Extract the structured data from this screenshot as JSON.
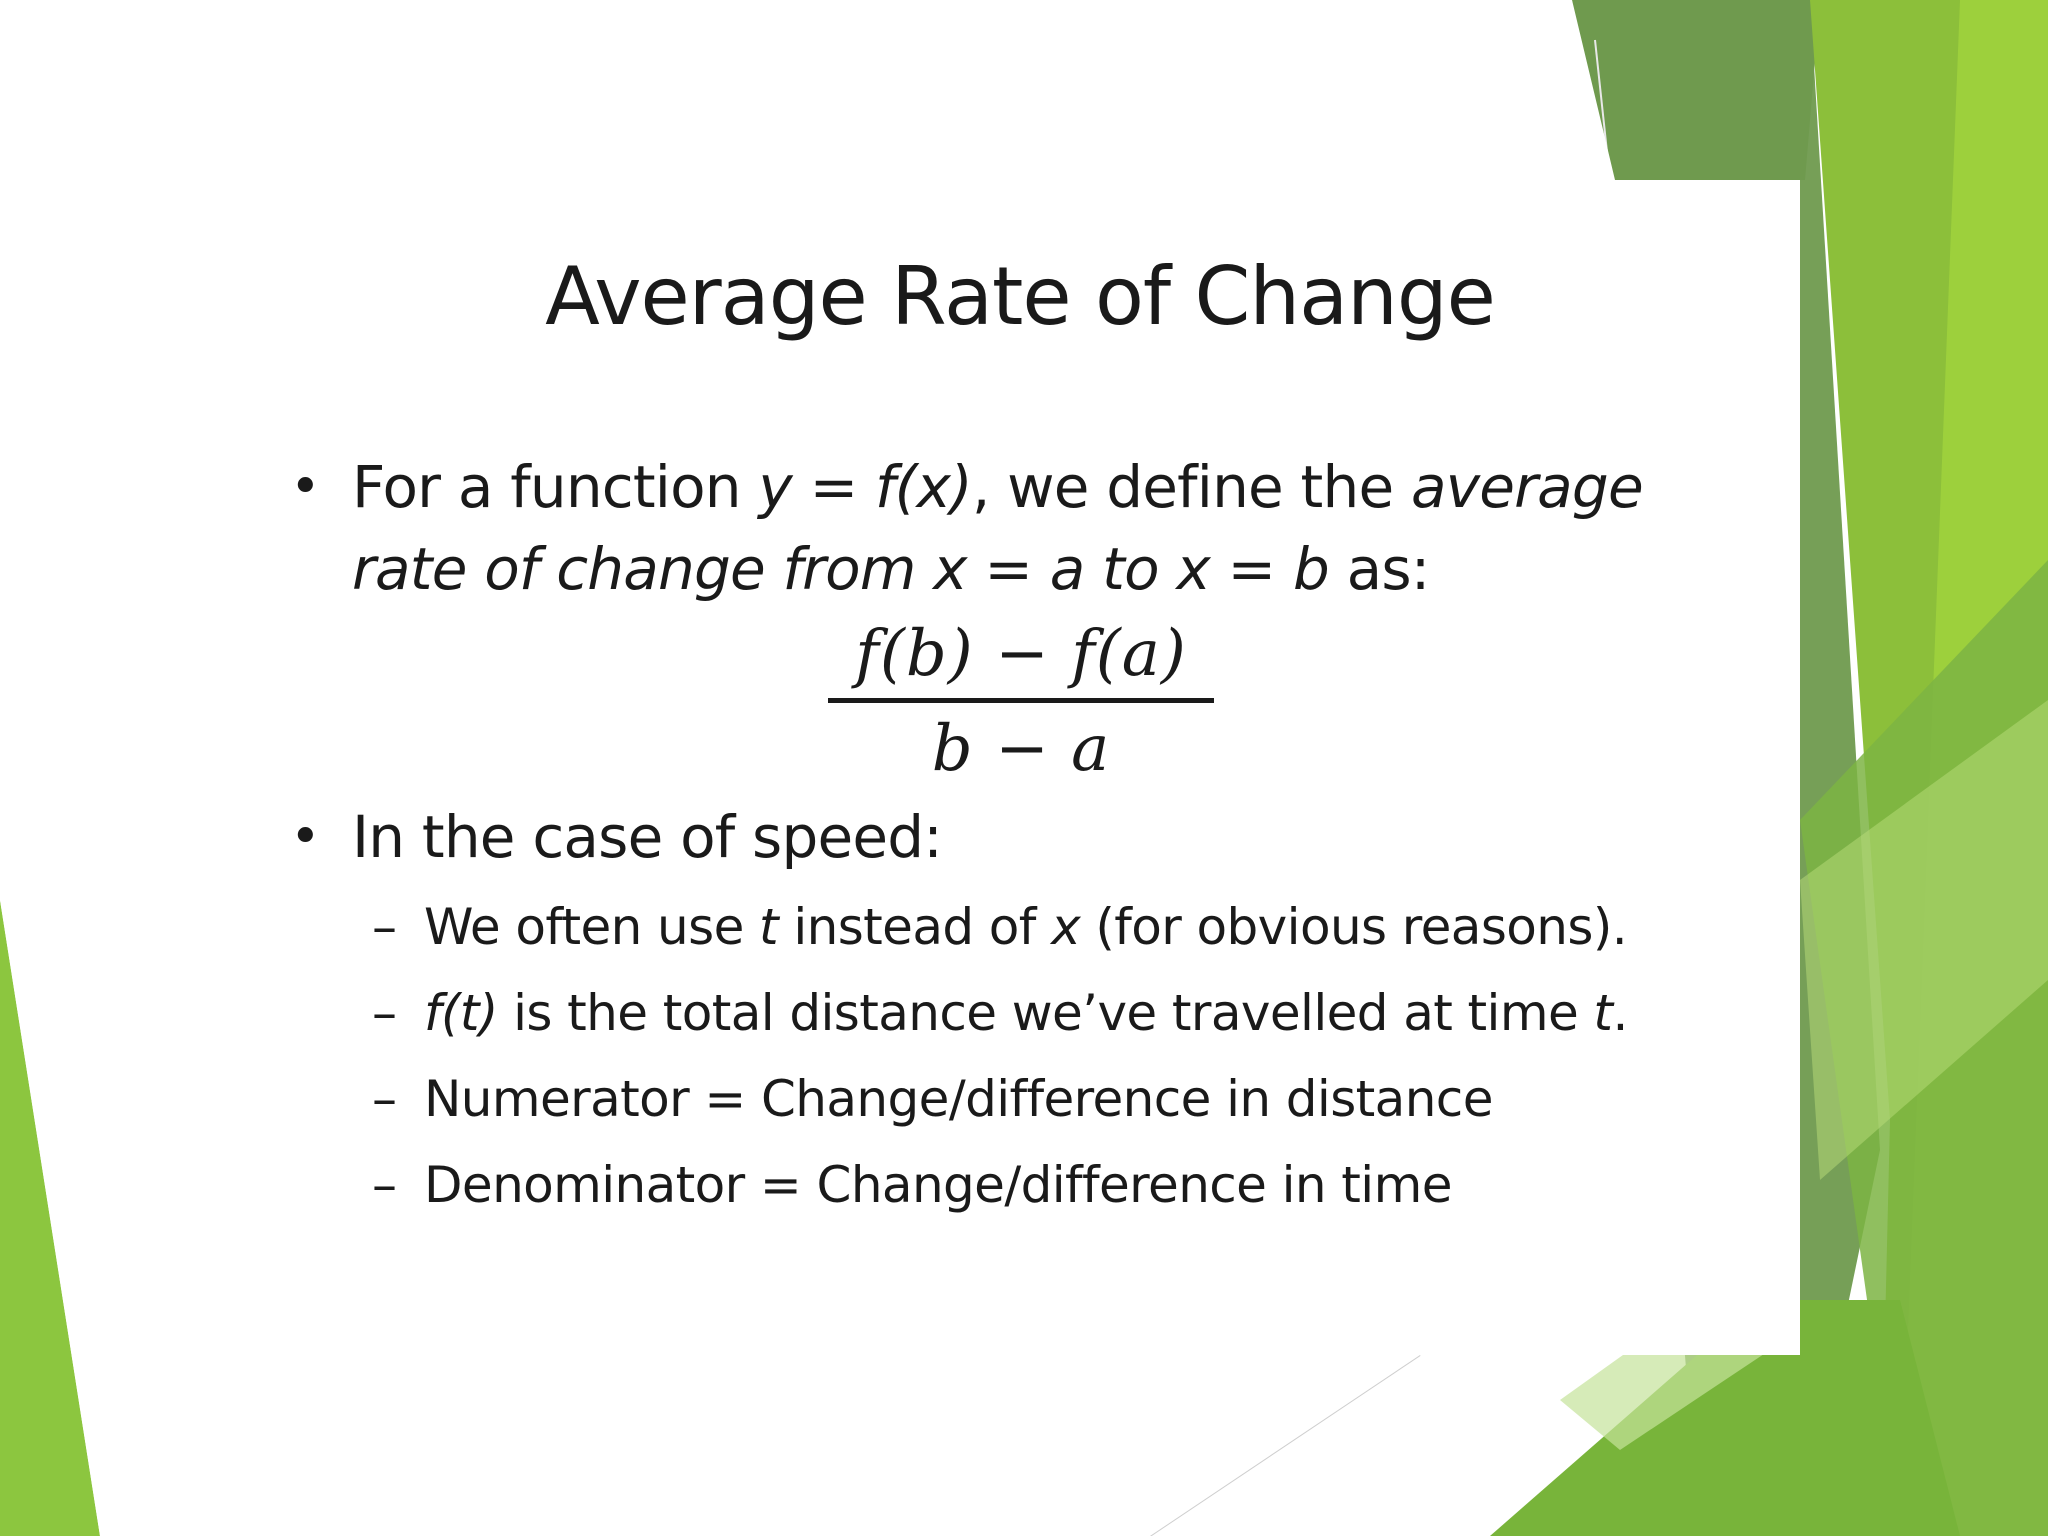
{
  "slide": {
    "title": "Average Rate of Change",
    "bullet1": {
      "part1": "For a function ",
      "part2": "y = f(x)",
      "part3": ", we define the ",
      "part4": "average rate of change from x = a to x = b",
      "part5": " as:"
    },
    "formula": {
      "numerator": "f(b) − f(a)",
      "denominator": "b − a"
    },
    "bullet2": {
      "text": "In the case of speed:"
    },
    "sub_items": [
      {
        "dash": "–",
        "a": "We often use ",
        "b": "t",
        "c": " instead of ",
        "d": "x",
        "e": " (for obvious reasons)."
      },
      {
        "dash": "–",
        "a": "f(t)",
        "b": " is the total distance we’ve travelled at time ",
        "c": "t",
        "d": "."
      },
      {
        "dash": "–",
        "text": "Numerator = Change/difference in distance"
      },
      {
        "dash": "–",
        "text": "Denominator = Change/difference in time"
      }
    ],
    "bullet_glyph": "•"
  },
  "theme": {
    "text_color": "#1a1a1a",
    "green_light": "#9ccb3f",
    "green_mid": "#7fb63a",
    "green_dark": "#5e9a3a",
    "green_olive": "#6f9a4e"
  }
}
